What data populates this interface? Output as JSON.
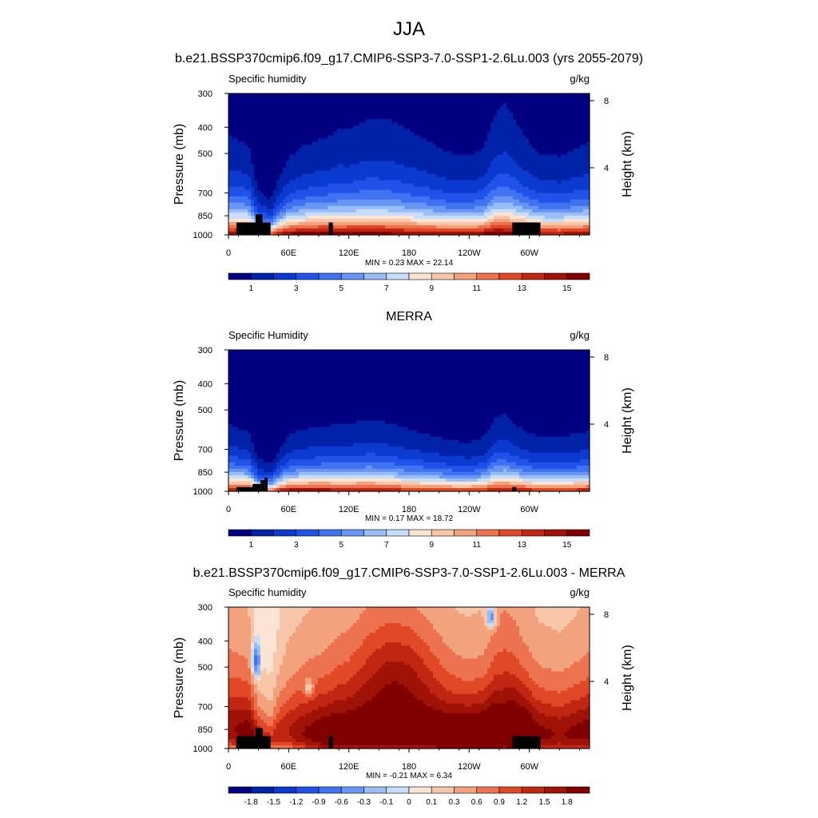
{
  "figure": {
    "season": "JJA",
    "panels": [
      {
        "title": "b.e21.BSSP370cmip6.f09_g17.CMIP6-SSP3-7.0-SSP1-2.6Lu.003 (yrs 2055-2079)",
        "variable": "Specific humidity",
        "units": "g/kg",
        "min_label": "MIN =   0.23  MAX =  22.14",
        "colorbar_labels": [
          "1",
          "3",
          "5",
          "7",
          "9",
          "11",
          "13",
          "15"
        ]
      },
      {
        "title": "MERRA",
        "variable": "Specific Humidity",
        "units": "g/kg",
        "min_label": "MIN =   0.17  MAX =  18.72",
        "colorbar_labels": [
          "1",
          "3",
          "5",
          "7",
          "9",
          "11",
          "13",
          "15"
        ]
      },
      {
        "title": "b.e21.BSSP370cmip6.f09_g17.CMIP6-SSP3-7.0-SSP1-2.6Lu.003 - MERRA",
        "variable": "Specific humidity",
        "units": "g/kg",
        "min_label": "MIN =  -0.21  MAX =   6.34",
        "colorbar_labels": [
          "-1.8",
          "-1.5",
          "-1.2",
          "-0.9",
          "-0.6",
          "-0.3",
          "-0.1",
          "0",
          "0.1",
          "0.3",
          "0.6",
          "0.9",
          "1.2",
          "1.5",
          "1.8"
        ]
      }
    ],
    "ylabel": "Pressure (mb)",
    "y2label": "Height (km)",
    "pressure_ticks": [
      "300",
      "400",
      "500",
      "700",
      "850",
      "1000"
    ],
    "height_ticks": [
      "8",
      "4"
    ],
    "lon_ticks": [
      "0",
      "60E",
      "120E",
      "180",
      "120W",
      "60W"
    ]
  },
  "chart_data": [
    {
      "type": "heatmap",
      "title": "b.e21.BSSP370cmip6.f09_g17.CMIP6-SSP3-7.0-SSP1-2.6Lu.003 (yrs 2055-2079)",
      "variable": "Specific humidity",
      "units": "g/kg",
      "xlabel": "Longitude",
      "ylabel": "Pressure (mb)",
      "xlim": [
        0,
        360
      ],
      "ylim": [
        1000,
        300
      ],
      "min": 0.23,
      "max": 22.14,
      "levels": [
        1,
        2,
        3,
        4,
        5,
        6,
        7,
        8,
        9,
        10,
        11,
        12,
        13,
        14,
        15
      ],
      "colors": [
        "#000080",
        "#0022a8",
        "#0a3ad0",
        "#2052ea",
        "#4072f2",
        "#6896f5",
        "#98bdf7",
        "#c6ddfb",
        "#fbe4d4",
        "#f8c7aa",
        "#f3a27e",
        "#ec7250",
        "#e04826",
        "#c02612",
        "#a01206",
        "#800000"
      ],
      "lon_nodes": [
        0,
        20,
        30,
        42,
        50,
        60,
        75,
        100,
        110,
        120,
        140,
        160,
        180,
        200,
        220,
        240,
        255,
        265,
        275,
        285,
        295,
        310,
        330,
        360
      ],
      "surface_q": [
        15.5,
        16.5,
        14,
        13,
        15,
        16,
        16.5,
        17,
        16,
        16.5,
        16.5,
        16,
        15.5,
        15.5,
        15.2,
        15.2,
        16,
        17,
        16.5,
        16.5,
        16,
        15,
        15,
        15.5
      ],
      "scale_height_hpa": [
        210,
        190,
        120,
        100,
        140,
        175,
        190,
        200,
        215,
        210,
        225,
        225,
        215,
        200,
        185,
        180,
        190,
        225,
        240,
        225,
        205,
        185,
        180,
        200
      ],
      "terrain_blocks": [
        [
          8,
          33,
          900
        ],
        [
          27,
          34,
          840
        ],
        [
          33,
          42,
          900
        ],
        [
          100,
          104,
          900
        ],
        [
          283,
          311,
          900
        ]
      ]
    },
    {
      "type": "heatmap",
      "title": "MERRA",
      "variable": "Specific Humidity",
      "units": "g/kg",
      "xlabel": "Longitude",
      "ylabel": "Pressure (mb)",
      "xlim": [
        0,
        360
      ],
      "ylim": [
        1000,
        300
      ],
      "min": 0.17,
      "max": 18.72,
      "levels": [
        1,
        2,
        3,
        4,
        5,
        6,
        7,
        8,
        9,
        10,
        11,
        12,
        13,
        14,
        15
      ],
      "colors": [
        "#000080",
        "#0022a8",
        "#0a3ad0",
        "#2052ea",
        "#4072f2",
        "#6896f5",
        "#98bdf7",
        "#c6ddfb",
        "#fbe4d4",
        "#f8c7aa",
        "#f3a27e",
        "#ec7250",
        "#e04826",
        "#c02612",
        "#a01206",
        "#800000"
      ],
      "lon_nodes": [
        0,
        20,
        30,
        42,
        50,
        60,
        75,
        100,
        110,
        120,
        140,
        160,
        180,
        200,
        220,
        240,
        255,
        265,
        275,
        285,
        295,
        310,
        330,
        360
      ],
      "surface_q": [
        15,
        15.5,
        13,
        12.5,
        14.5,
        15.5,
        15.5,
        15.5,
        14.5,
        15,
        15,
        14.5,
        14,
        14,
        13.5,
        13.5,
        14,
        15,
        15,
        14.5,
        14.5,
        14,
        14,
        14.5
      ],
      "scale_height_hpa": [
        160,
        145,
        95,
        80,
        110,
        140,
        150,
        155,
        165,
        160,
        170,
        165,
        155,
        145,
        135,
        130,
        140,
        170,
        180,
        165,
        150,
        140,
        140,
        150
      ],
      "terrain_blocks": [
        [
          8,
          24,
          965
        ],
        [
          24,
          32,
          940
        ],
        [
          32,
          36,
          910
        ],
        [
          36,
          39,
          890
        ],
        [
          283,
          287,
          965
        ]
      ]
    },
    {
      "type": "heatmap",
      "title": "b.e21.BSSP370cmip6.f09_g17.CMIP6-SSP3-7.0-SSP1-2.6Lu.003 - MERRA",
      "variable": "Specific humidity",
      "units": "g/kg",
      "xlabel": "Longitude",
      "ylabel": "Pressure (mb)",
      "xlim": [
        0,
        360
      ],
      "ylim": [
        1000,
        300
      ],
      "min": -0.21,
      "max": 6.34,
      "levels": [
        -1.8,
        -1.5,
        -1.2,
        -0.9,
        -0.6,
        -0.3,
        -0.1,
        0,
        0.1,
        0.3,
        0.6,
        0.9,
        1.2,
        1.5,
        1.8
      ],
      "colors": [
        "#000080",
        "#0022a8",
        "#0a3ad0",
        "#2052ea",
        "#4072f2",
        "#6896f5",
        "#98bdf7",
        "#c6ddfb",
        "#fbe4d4",
        "#f8c7aa",
        "#f3a27e",
        "#ec7250",
        "#e04826",
        "#c02612",
        "#a01206",
        "#800000"
      ],
      "difference_field": true,
      "terrain_blocks": [
        [
          8,
          33,
          900
        ],
        [
          27,
          34,
          840
        ],
        [
          33,
          42,
          900
        ],
        [
          100,
          104,
          900
        ],
        [
          283,
          311,
          900
        ]
      ]
    }
  ]
}
